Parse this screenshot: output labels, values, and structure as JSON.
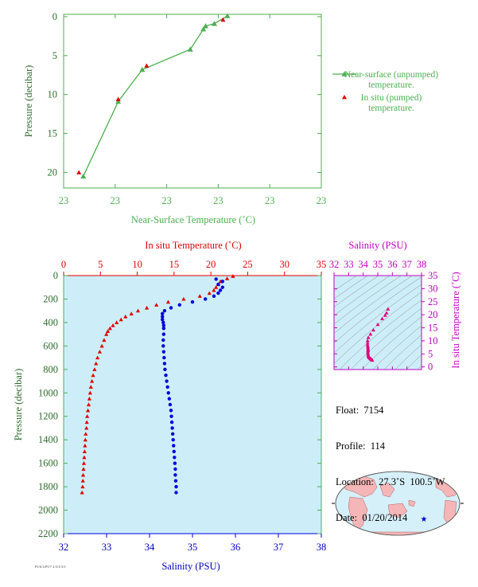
{
  "chart_data": [
    {
      "id": "near-surface",
      "type": "line",
      "xlabel": "Near-Surface Temperature (˚C)",
      "ylabel": "Pressure (decibar)",
      "x_ticks": [
        "23",
        "23",
        "23",
        "23",
        "23",
        "23"
      ],
      "y_ticks": [
        0,
        5,
        10,
        15,
        20
      ],
      "xlim": [
        19.6,
        25.5
      ],
      "ylim": [
        22,
        -0.3
      ],
      "y_inverted": true,
      "colors": {
        "unpumped": "#4caf50",
        "pumped": "#e00000",
        "axis": "#4caf50"
      },
      "series": [
        {
          "name": "Near-surface (unpumped)\ntemperature.",
          "name_lines": [
            "Near-surface (unpumped)",
            "temperature."
          ],
          "marker": "triangle",
          "x": [
            23.35,
            23.05,
            22.85,
            22.8,
            22.5,
            21.4,
            20.85,
            20.05
          ],
          "y": [
            -0.1,
            0.9,
            1.2,
            1.6,
            4.2,
            6.8,
            10.9,
            20.5
          ]
        },
        {
          "name": "In situ (pumped)\ntemperature.",
          "name_lines": [
            "In situ (pumped)",
            "temperature."
          ],
          "marker": "triangle",
          "x": [
            23.25,
            21.5,
            20.85,
            19.95
          ],
          "y": [
            0.4,
            6.3,
            10.6,
            20.0
          ]
        }
      ]
    },
    {
      "id": "profile",
      "type": "scatter",
      "ylabel": "Pressure (decibar)",
      "x_bottom_label": "Salinity (PSU)",
      "x_top_label": "In situ Temperature (˚C)",
      "salinity_ticks": [
        32,
        33,
        34,
        35,
        36,
        37,
        38
      ],
      "temperature_ticks": [
        0,
        5,
        10,
        15,
        20,
        25,
        30,
        35
      ],
      "pressure_ticks": [
        0,
        200,
        400,
        600,
        800,
        1000,
        1200,
        1400,
        1600,
        1800,
        2000,
        2200
      ],
      "salinity_lim": [
        32,
        38
      ],
      "temperature_lim": [
        0,
        35
      ],
      "pressure_lim": [
        0,
        2200
      ],
      "colors": {
        "temperature": "#e00000",
        "salinity": "#0000e0",
        "background": "#cdeef8"
      },
      "temperature_profile": {
        "pressure": [
          5,
          25,
          50,
          75,
          100,
          125,
          150,
          175,
          200,
          225,
          250,
          275,
          300,
          325,
          350,
          375,
          400,
          425,
          450,
          475,
          500,
          550,
          600,
          650,
          700,
          750,
          800,
          850,
          900,
          950,
          1000,
          1050,
          1100,
          1150,
          1200,
          1250,
          1300,
          1350,
          1400,
          1450,
          1500,
          1550,
          1600,
          1650,
          1700,
          1750,
          1800,
          1850
        ],
        "temperature": [
          23.0,
          22.2,
          21.3,
          21.0,
          20.7,
          20.4,
          19.8,
          18.5,
          16.3,
          14.2,
          12.6,
          11.3,
          10.1,
          9.2,
          8.4,
          7.8,
          7.2,
          6.7,
          6.3,
          6.0,
          5.8,
          5.5,
          5.2,
          4.9,
          4.6,
          4.4,
          4.2,
          4.0,
          3.85,
          3.7,
          3.6,
          3.5,
          3.4,
          3.3,
          3.2,
          3.15,
          3.1,
          3.0,
          2.95,
          2.9,
          2.85,
          2.8,
          2.75,
          2.7,
          2.65,
          2.62,
          2.58,
          2.5
        ]
      },
      "salinity_profile": {
        "pressure": [
          30,
          50,
          75,
          100,
          125,
          150,
          175,
          200,
          225,
          250,
          275,
          300,
          325,
          350,
          375,
          400,
          425,
          450,
          500,
          550,
          600,
          650,
          700,
          750,
          800,
          850,
          900,
          950,
          1000,
          1050,
          1100,
          1150,
          1200,
          1250,
          1300,
          1350,
          1400,
          1450,
          1500,
          1550,
          1600,
          1650,
          1700,
          1750,
          1800,
          1850
        ],
        "salinity": [
          35.55,
          35.7,
          35.6,
          35.7,
          35.65,
          35.6,
          35.5,
          35.3,
          35.0,
          34.7,
          34.5,
          34.35,
          34.3,
          34.3,
          34.3,
          34.32,
          34.33,
          34.33,
          34.33,
          34.32,
          34.32,
          34.33,
          34.34,
          34.35,
          34.36,
          34.38,
          34.4,
          34.42,
          34.44,
          34.46,
          34.48,
          34.5,
          34.51,
          34.52,
          34.53,
          34.54,
          34.55,
          34.56,
          34.57,
          34.58,
          34.59,
          34.6,
          34.6,
          34.61,
          34.62,
          34.62
        ]
      }
    },
    {
      "id": "ts-diagram",
      "type": "scatter",
      "x_top_label": "Salinity (PSU)",
      "y_right_label": "In situ Temperature (˚C)",
      "salinity_ticks": [
        32,
        33,
        34,
        35,
        36,
        37,
        38
      ],
      "temperature_ticks": [
        0,
        5,
        10,
        15,
        20,
        25,
        30,
        35
      ],
      "salinity_lim": [
        32,
        38
      ],
      "temperature_lim": [
        -1,
        35
      ],
      "colors": {
        "points": "#e0007a",
        "axis": "#c000c0",
        "contours": "#888888",
        "background": "#cdeef8"
      },
      "points": {
        "salinity": [
          35.7,
          35.6,
          35.5,
          35.3,
          35.0,
          34.7,
          34.5,
          34.35,
          34.3,
          34.3,
          34.3,
          34.32,
          34.33,
          34.33,
          34.33,
          34.32,
          34.33,
          34.34,
          34.36,
          34.38,
          34.42,
          34.46,
          34.5,
          34.53,
          34.56,
          34.6,
          34.62
        ],
        "temperature": [
          22.2,
          20.7,
          19.8,
          18.5,
          16.3,
          14.2,
          12.6,
          11.3,
          10.1,
          9.2,
          8.4,
          7.8,
          7.2,
          6.7,
          6.3,
          5.8,
          5.2,
          4.6,
          4.2,
          3.85,
          3.6,
          3.4,
          3.2,
          3.1,
          2.95,
          2.8,
          2.6
        ]
      }
    }
  ],
  "info": {
    "float": "Float:  7154",
    "profile": "Profile:  114",
    "location": "Location:  27.3˚S  100.5˚W",
    "date": "Date:  01/20/2014"
  },
  "footer_note": "P5/6/3/P5/7 2/3/3/3/3"
}
